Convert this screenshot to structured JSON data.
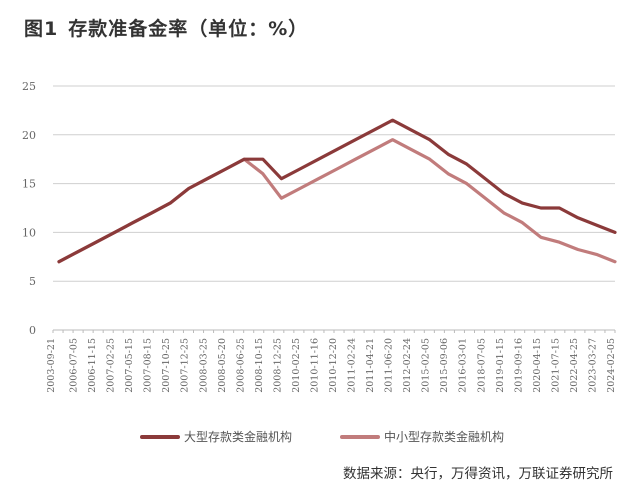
{
  "header": {
    "figure_label": "图1",
    "title": "存款准备金率（单位：%）"
  },
  "legend": {
    "items": [
      {
        "label": "大型存款类金融机构",
        "color": "#8B3A3A"
      },
      {
        "label": "中小型存款类金融机构",
        "color": "#C17C7C"
      }
    ]
  },
  "footer": {
    "source": "数据来源：央行，万得资讯，万联证券研究所"
  },
  "chart_data": {
    "type": "line",
    "title": "图1 存款准备金率（单位：%）",
    "xlabel": "",
    "ylabel": "%",
    "ylim": [
      0,
      25
    ],
    "yticks": [
      0,
      5,
      10,
      15,
      20,
      25
    ],
    "grid": true,
    "legend_position": "bottom",
    "categories": [
      "2003-09-21",
      "2006-07-05",
      "2006-11-15",
      "2007-02-25",
      "2007-05-15",
      "2007-08-15",
      "2007-10-25",
      "2007-12-25",
      "2008-03-25",
      "2008-05-20",
      "2008-06-25",
      "2008-10-15",
      "2008-12-25",
      "2010-02-25",
      "2010-11-16",
      "2010-12-20",
      "2011-02-24",
      "2011-04-21",
      "2011-06-20",
      "2012-02-24",
      "2015-02-05",
      "2015-09-06",
      "2016-03-01",
      "2018-07-05",
      "2019-01-15",
      "2019-09-16",
      "2020-04-15",
      "2021-07-15",
      "2022-04-25",
      "2023-03-27",
      "2024-02-05"
    ],
    "series": [
      {
        "name": "大型存款类金融机构",
        "color": "#8B3A3A",
        "values": [
          7.0,
          8.0,
          9.0,
          10.0,
          11.0,
          12.0,
          13.0,
          14.5,
          15.5,
          16.5,
          17.5,
          17.5,
          15.5,
          16.5,
          17.5,
          18.5,
          19.5,
          20.5,
          21.5,
          20.5,
          19.5,
          18.0,
          17.0,
          15.5,
          14.0,
          13.0,
          12.5,
          12.5,
          11.5,
          10.75,
          10.0
        ]
      },
      {
        "name": "中小型存款类金融机构",
        "color": "#C17C7C",
        "values": [
          7.0,
          8.0,
          9.0,
          10.0,
          11.0,
          12.0,
          13.0,
          14.5,
          15.5,
          16.5,
          17.5,
          16.0,
          13.5,
          14.5,
          15.5,
          16.5,
          17.5,
          18.5,
          19.5,
          18.5,
          17.5,
          16.0,
          15.0,
          13.5,
          12.0,
          11.0,
          9.5,
          9.0,
          8.25,
          7.75,
          7.0
        ]
      }
    ]
  }
}
